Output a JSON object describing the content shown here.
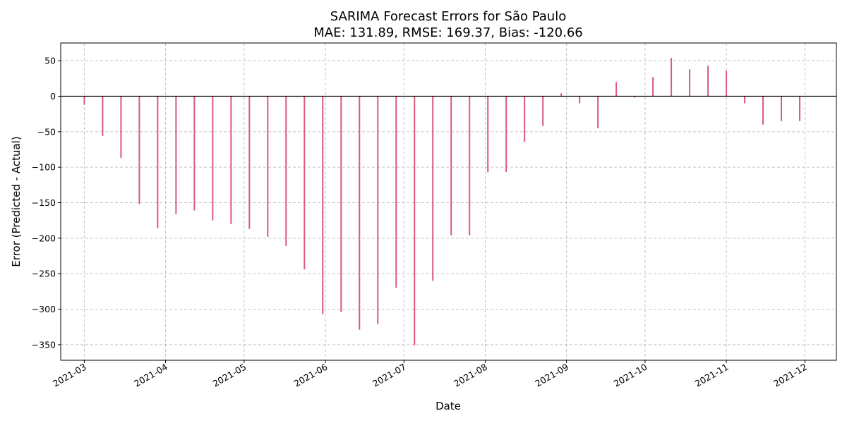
{
  "chart_data": {
    "type": "bar",
    "title": "SARIMA Forecast Errors for São Paulo",
    "subtitle": "MAE: 131.89, RMSE: 169.37, Bias: -120.66",
    "xlabel": "Date",
    "ylabel": "Error (Predicted - Actual)",
    "ylim": [
      -372,
      75
    ],
    "xlim": [
      "2021-02-20",
      "2021-12-13"
    ],
    "yticks": [
      50,
      0,
      -50,
      -100,
      -150,
      -200,
      -250,
      -300,
      -350
    ],
    "ytick_labels": [
      "50",
      "0",
      "−50",
      "−100",
      "−150",
      "−200",
      "−250",
      "−300",
      "−350"
    ],
    "xticks": [
      "2021-03-01",
      "2021-04-01",
      "2021-05-01",
      "2021-06-01",
      "2021-07-01",
      "2021-08-01",
      "2021-09-01",
      "2021-10-01",
      "2021-11-01",
      "2021-12-01"
    ],
    "xtick_labels": [
      "2021-03",
      "2021-04",
      "2021-05",
      "2021-06",
      "2021-07",
      "2021-08",
      "2021-09",
      "2021-10",
      "2021-11",
      "2021-12"
    ],
    "grid": true,
    "zero_line": true,
    "bar_color": "#dc5a78",
    "x": [
      "2021-03-01",
      "2021-03-08",
      "2021-03-15",
      "2021-03-22",
      "2021-03-29",
      "2021-04-05",
      "2021-04-12",
      "2021-04-19",
      "2021-04-26",
      "2021-05-03",
      "2021-05-10",
      "2021-05-17",
      "2021-05-24",
      "2021-05-31",
      "2021-06-07",
      "2021-06-14",
      "2021-06-21",
      "2021-06-28",
      "2021-07-05",
      "2021-07-12",
      "2021-07-19",
      "2021-07-26",
      "2021-08-02",
      "2021-08-09",
      "2021-08-16",
      "2021-08-23",
      "2021-08-30",
      "2021-09-06",
      "2021-09-13",
      "2021-09-20",
      "2021-09-27",
      "2021-10-04",
      "2021-10-11",
      "2021-10-18",
      "2021-10-25",
      "2021-11-01",
      "2021-11-08",
      "2021-11-15",
      "2021-11-22",
      "2021-11-29"
    ],
    "values": [
      -12,
      -56,
      -87,
      -152,
      -186,
      -166,
      -161,
      -175,
      -180,
      -187,
      -198,
      -211,
      -244,
      -307,
      -304,
      -329,
      -321,
      -270,
      -351,
      -260,
      -196,
      -196,
      -107,
      -107,
      -64,
      -42,
      4,
      -10,
      -45,
      20,
      -2,
      27,
      54,
      38,
      43,
      36,
      -10,
      -40,
      -35,
      -35
    ]
  }
}
